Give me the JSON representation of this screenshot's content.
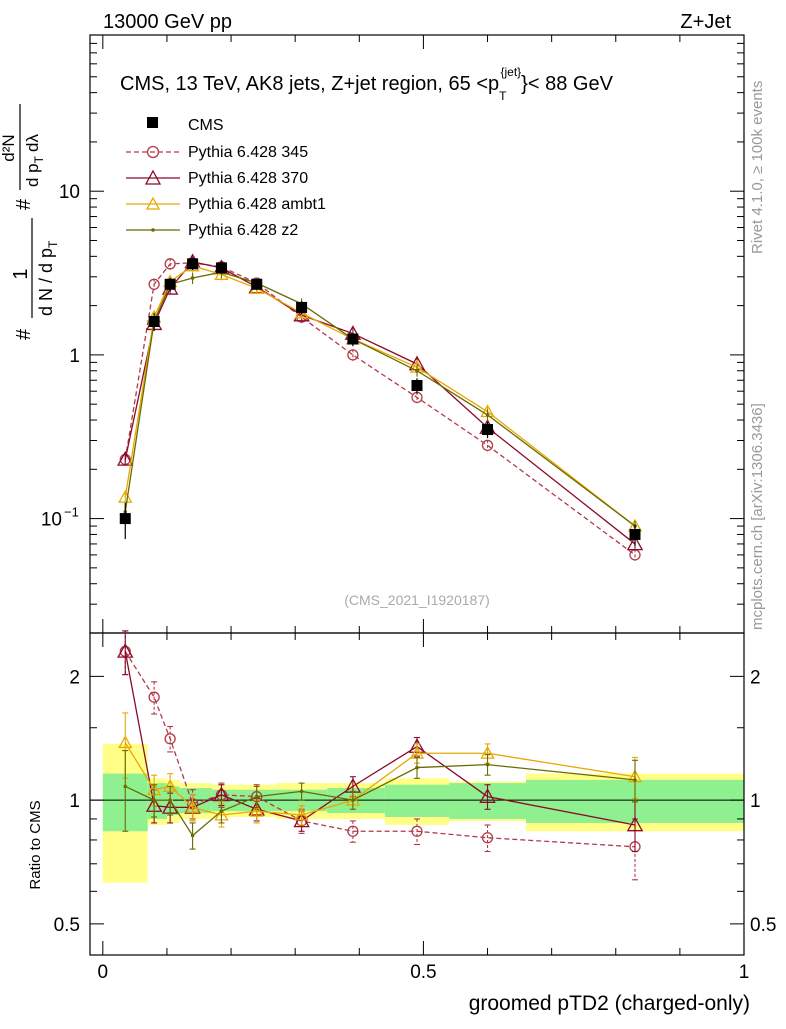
{
  "header": {
    "left": "13000 GeV pp",
    "right": "Z+Jet"
  },
  "side_labels": {
    "rivet": "Rivet 4.1.0, ≥ 100k events",
    "mcplots": "mcplots.cern.ch [arXiv:1306.3436]"
  },
  "main_title": "CMS, 13 TeV, AK8 jets, Z+jet region, 65 <p",
  "main_title_sup": "{jet}",
  "main_title_sub": "T",
  "main_title_end": "}< 88 GeV",
  "ylabel": {
    "hash1": "#",
    "num1": "1",
    "den1": "d N / d p",
    "den1_sub": "T",
    "hash2": "#",
    "num2": "d²N",
    "den2": "d p",
    "den2_sub": "T",
    "den2_end": "dλ"
  },
  "analysis_id": "(CMS_2021_I1920187)",
  "ratio_ylabel": "Ratio to CMS",
  "xlabel": "groomed pTD2 (charged-only)",
  "colors": {
    "data": "#000000",
    "p345": "#b23a48",
    "p370": "#8b0a2a",
    "ambt1": "#e8a800",
    "z2": "#6b6b00",
    "band_inner": "#8ff08f",
    "band_outer": "#ffff88"
  },
  "chart_data": {
    "type": "line",
    "x_range": [
      -0.02,
      1.0
    ],
    "x_ticks": [
      {
        "value": 0,
        "label": "0"
      },
      {
        "value": 0.5,
        "label": "0.5"
      },
      {
        "value": 1,
        "label": "1"
      }
    ],
    "main": {
      "yscale": "log",
      "ylim": [
        0.02,
        90
      ],
      "y_ticks": [
        {
          "value": 0.1,
          "label": "10",
          "sup": "−1"
        },
        {
          "value": 1,
          "label": "1",
          "sup": ""
        },
        {
          "value": 10,
          "label": "10",
          "sup": ""
        }
      ]
    },
    "ratio": {
      "yscale": "log",
      "ylim": [
        0.42,
        2.55
      ],
      "y_ticks": [
        {
          "value": 0.5,
          "label": "0.5"
        },
        {
          "value": 1,
          "label": "1"
        },
        {
          "value": 2,
          "label": "2"
        }
      ]
    },
    "bins": [
      {
        "lo": 0.0,
        "hi": 0.07
      },
      {
        "lo": 0.07,
        "hi": 0.1
      },
      {
        "lo": 0.1,
        "hi": 0.12
      },
      {
        "lo": 0.12,
        "hi": 0.17
      },
      {
        "lo": 0.17,
        "hi": 0.21
      },
      {
        "lo": 0.21,
        "hi": 0.27
      },
      {
        "lo": 0.27,
        "hi": 0.35
      },
      {
        "lo": 0.35,
        "hi": 0.44
      },
      {
        "lo": 0.44,
        "hi": 0.54
      },
      {
        "lo": 0.54,
        "hi": 0.66
      },
      {
        "lo": 0.66,
        "hi": 1.0
      }
    ],
    "x": [
      0.035,
      0.08,
      0.105,
      0.14,
      0.185,
      0.24,
      0.31,
      0.39,
      0.49,
      0.6,
      0.83
    ],
    "data": {
      "name": "CMS",
      "values": [
        0.1,
        1.6,
        2.7,
        3.6,
        3.4,
        2.7,
        1.95,
        1.25,
        0.65,
        0.35,
        0.08
      ],
      "errors": [
        0.025,
        0.2,
        0.25,
        0.3,
        0.25,
        0.2,
        0.18,
        0.12,
        0.07,
        0.04,
        0.012
      ]
    },
    "band_inner": [
      0.16,
      0.1,
      0.08,
      0.07,
      0.06,
      0.06,
      0.06,
      0.07,
      0.09,
      0.1,
      0.12
    ],
    "band_outer": [
      0.37,
      0.13,
      0.12,
      0.1,
      0.09,
      0.09,
      0.1,
      0.1,
      0.13,
      0.11,
      0.16
    ],
    "series": [
      {
        "name": "Pythia 6.428 345",
        "marker": "circle",
        "dashed": true,
        "values": [
          0.23,
          2.7,
          3.6,
          3.65,
          3.45,
          2.75,
          1.7,
          1.0,
          0.55,
          0.28,
          0.06
        ],
        "ratio": [
          2.3,
          1.78,
          1.41,
          0.98,
          1.03,
          1.02,
          0.89,
          0.84,
          0.84,
          0.81,
          0.77
        ],
        "ratio_err": [
          0.28,
          0.16,
          0.1,
          0.08,
          0.07,
          0.07,
          0.06,
          0.05,
          0.06,
          0.06,
          0.13
        ]
      },
      {
        "name": "Pythia 6.428 370",
        "marker": "triangle",
        "dashed": false,
        "values": [
          0.23,
          1.55,
          2.55,
          3.7,
          3.4,
          2.6,
          1.75,
          1.35,
          0.88,
          0.36,
          0.07
        ],
        "ratio": [
          2.3,
          0.97,
          0.96,
          0.96,
          1.03,
          0.95,
          0.89,
          1.08,
          1.35,
          1.02,
          0.87
        ],
        "ratio_err": [
          0.28,
          0.09,
          0.08,
          0.07,
          0.06,
          0.06,
          0.05,
          0.06,
          0.07,
          0.07,
          0.12
        ]
      },
      {
        "name": "Pythia 6.428 ambt1",
        "marker": "triangle",
        "dashed": false,
        "values": [
          0.135,
          1.7,
          2.8,
          3.5,
          3.1,
          2.55,
          1.8,
          1.25,
          0.84,
          0.45,
          0.09
        ],
        "ratio": [
          1.38,
          1.06,
          1.08,
          0.96,
          0.92,
          0.94,
          0.92,
          1.0,
          1.3,
          1.3,
          1.14
        ],
        "ratio_err": [
          0.25,
          0.09,
          0.08,
          0.07,
          0.06,
          0.06,
          0.05,
          0.05,
          0.07,
          0.07,
          0.13
        ]
      },
      {
        "name": "Pythia 6.428 z2",
        "marker": "dot",
        "dashed": false,
        "values": [
          0.11,
          1.6,
          2.7,
          2.95,
          3.2,
          2.75,
          2.05,
          1.25,
          0.8,
          0.43,
          0.09
        ],
        "ratio": [
          1.08,
          1.0,
          1.0,
          0.82,
          0.94,
          1.02,
          1.05,
          1.0,
          1.2,
          1.22,
          1.12
        ],
        "ratio_err": [
          0.24,
          0.09,
          0.08,
          0.06,
          0.06,
          0.06,
          0.05,
          0.05,
          0.07,
          0.07,
          0.13
        ]
      }
    ]
  }
}
